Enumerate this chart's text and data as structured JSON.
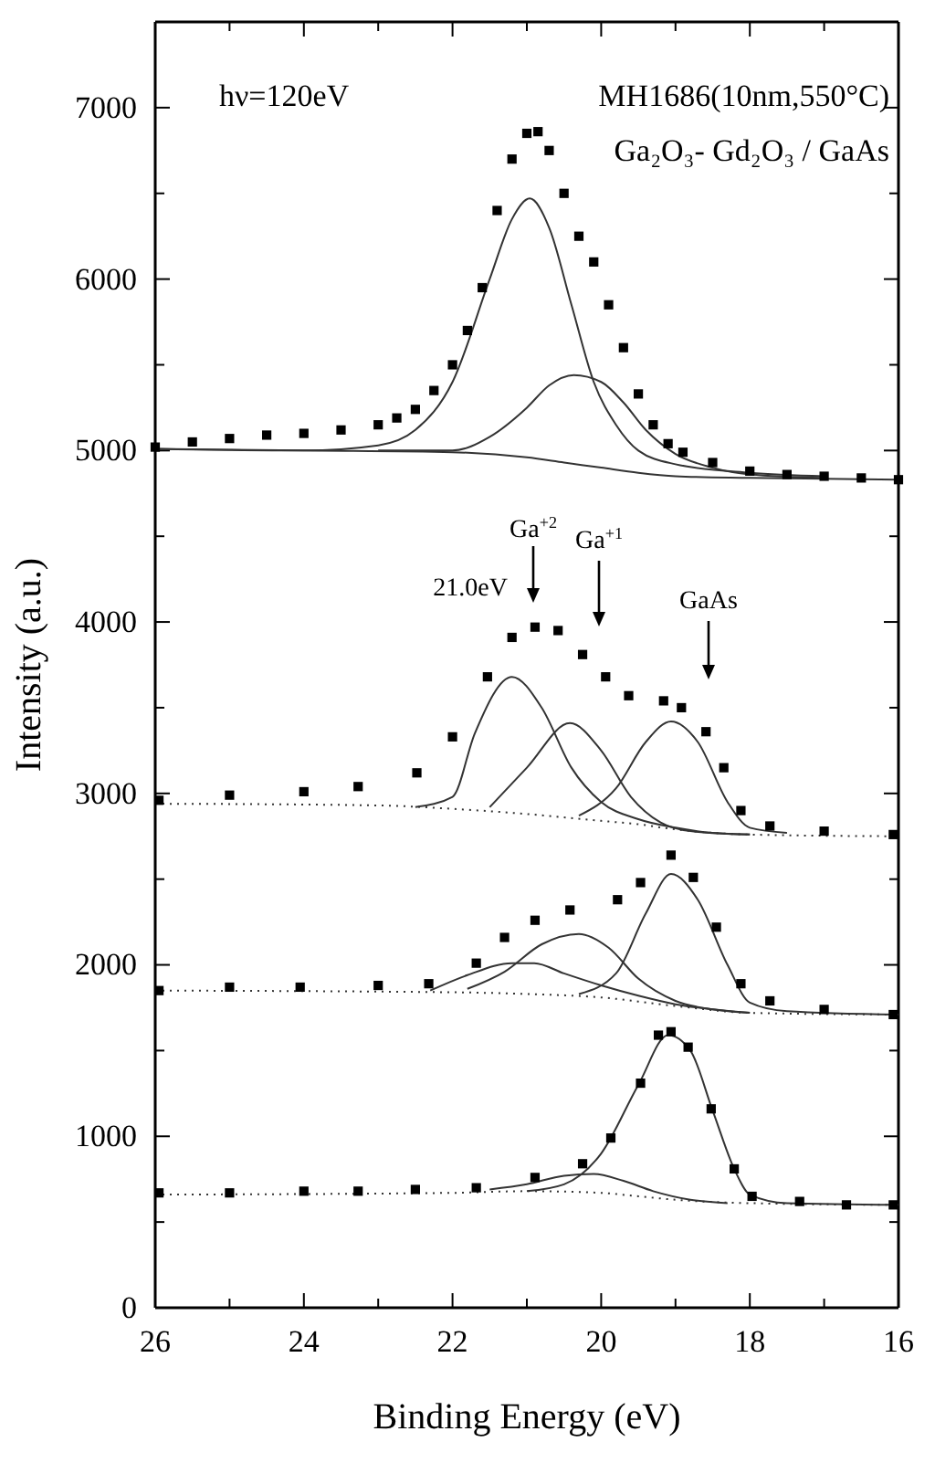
{
  "chart_data": {
    "type": "line",
    "xlabel": "Binding Energy (eV)",
    "ylabel": "Intensity (a.u.)",
    "xlim": [
      26,
      16
    ],
    "ylim": [
      0,
      7500
    ],
    "xticks": [
      26,
      {
        "value": 25,
        "label": null
      },
      24,
      {
        "value": 23,
        "label": null
      },
      22,
      {
        "value": 21,
        "label": null
      },
      20,
      {
        "value": 19,
        "label": null
      },
      18,
      {
        "value": 17,
        "label": null
      },
      16
    ],
    "yticks": [
      0,
      {
        "value": 500,
        "label": null
      },
      1000,
      {
        "value": 1500,
        "label": null
      },
      2000,
      {
        "value": 2500,
        "label": null
      },
      3000,
      {
        "value": 3500,
        "label": null
      },
      4000,
      {
        "value": 4500,
        "label": null
      },
      5000,
      {
        "value": 5500,
        "label": null
      },
      6000,
      {
        "value": 6500,
        "label": null
      },
      7000
    ],
    "grid": false,
    "annotations": [
      "hν=120eV",
      "MH1686(10nm,550°C)",
      "Ga₂O₃- Gd₂O₃ / GaAs",
      "21.0eV",
      "Ga$^{+2}$",
      "Ga$^{+1}$",
      "GaAs"
    ],
    "series": [
      {
        "type": "scatter",
        "marker": "square",
        "color": "#000000",
        "x": [
          26,
          25.5,
          25,
          24.5,
          24,
          23.5,
          23,
          22.75,
          22.5,
          22.25,
          22,
          21.8,
          21.6,
          21.4,
          21.2,
          21,
          20.85,
          20.7,
          20.5,
          20.3,
          20.1,
          19.9,
          19.7,
          19.5,
          19.3,
          19.1,
          18.9,
          18.5,
          18,
          17.5,
          17,
          16.5,
          16
        ],
        "values": [
          5020,
          5050,
          5070,
          5090,
          5100,
          5120,
          5150,
          5190,
          5240,
          5350,
          5500,
          5700,
          5950,
          6400,
          6700,
          6850,
          6860,
          6750,
          6500,
          6250,
          6100,
          5850,
          5600,
          5330,
          5150,
          5040,
          4990,
          4930,
          4880,
          4860,
          4850,
          4840,
          4830
        ]
      },
      {
        "color": "#333333",
        "x": [
          26,
          24,
          23,
          22.5,
          22,
          21.5,
          21.2,
          20.96,
          20.7,
          20.4,
          20.1,
          19.8,
          19.5,
          19,
          18,
          17
        ],
        "values": [
          5010,
          5000,
          5030,
          5120,
          5400,
          6000,
          6350,
          6470,
          6300,
          5850,
          5400,
          5150,
          5000,
          4920,
          4870,
          4850
        ]
      },
      {
        "color": "#333333",
        "x": [
          23,
          22,
          21.5,
          21,
          20.7,
          20.37,
          20,
          19.7,
          19.4,
          19,
          18.5,
          18,
          17
        ],
        "values": [
          5000,
          5000,
          5080,
          5250,
          5380,
          5440,
          5400,
          5280,
          5120,
          4980,
          4900,
          4860,
          4840
        ]
      },
      {
        "color": "#333333",
        "x": [
          26,
          24,
          22,
          21,
          20.5,
          20,
          19.5,
          19,
          18,
          16
        ],
        "values": [
          5010,
          5000,
          4990,
          4960,
          4930,
          4900,
          4870,
          4850,
          4840,
          4830
        ]
      },
      {
        "type": "scatter",
        "marker": "square",
        "color": "#000000",
        "x": [
          25.95,
          25,
          24,
          23.27,
          22.48,
          22,
          21.53,
          21.2,
          20.89,
          20.58,
          20.25,
          19.94,
          19.63,
          19.16,
          18.92,
          18.59,
          18.35,
          18.12,
          17.73,
          17,
          16.07
        ],
        "values": [
          2960,
          2990,
          3010,
          3040,
          3120,
          3330,
          3680,
          3910,
          3970,
          3950,
          3810,
          3680,
          3570,
          3540,
          3500,
          3360,
          3150,
          2900,
          2810,
          2780,
          2760
        ]
      },
      {
        "color": "#333333",
        "x": [
          22.5,
          22,
          21.7,
          21.2,
          20.8,
          20.4,
          20,
          19.5,
          19,
          18.5,
          18
        ],
        "values": [
          2920,
          2980,
          3350,
          3680,
          3500,
          3150,
          2950,
          2850,
          2800,
          2770,
          2760
        ]
      },
      {
        "color": "#333333",
        "x": [
          21.5,
          21,
          20.42,
          20,
          19.6,
          19.2,
          18.8,
          18
        ],
        "values": [
          2920,
          3150,
          3410,
          3250,
          2980,
          2830,
          2780,
          2760
        ]
      },
      {
        "color": "#333333",
        "x": [
          20.3,
          19.8,
          19.4,
          19.06,
          18.7,
          18.3,
          18,
          17.5
        ],
        "values": [
          2870,
          3030,
          3300,
          3420,
          3300,
          2950,
          2800,
          2770
        ]
      },
      {
        "color": "#333333",
        "line_style": "dotted",
        "x": [
          26,
          23,
          22,
          21,
          20,
          19.5,
          19,
          18,
          16
        ],
        "values": [
          2940,
          2930,
          2910,
          2880,
          2840,
          2820,
          2790,
          2760,
          2750
        ]
      },
      {
        "type": "scatter",
        "marker": "square",
        "color": "#000000",
        "x": [
          25.95,
          25,
          24.05,
          23,
          22.32,
          21.68,
          21.3,
          20.89,
          20.42,
          19.78,
          19.47,
          19.06,
          18.76,
          18.45,
          18.12,
          17.73,
          17,
          16.07
        ],
        "values": [
          1850,
          1870,
          1870,
          1880,
          1890,
          2010,
          2160,
          2260,
          2320,
          2380,
          2480,
          2640,
          2510,
          2220,
          1890,
          1790,
          1740,
          1710
        ]
      },
      {
        "color": "#333333",
        "x": [
          22.3,
          21.8,
          21.2,
          20.9,
          20.5,
          20,
          19.5,
          19,
          18.5,
          18
        ],
        "values": [
          1850,
          1940,
          2010,
          2010,
          1950,
          1880,
          1820,
          1770,
          1740,
          1720
        ]
      },
      {
        "color": "#333333",
        "x": [
          21.8,
          21.3,
          20.8,
          20.3,
          19.9,
          19.5,
          19,
          18.5,
          18
        ],
        "values": [
          1860,
          1960,
          2120,
          2180,
          2100,
          1920,
          1790,
          1740,
          1720
        ]
      },
      {
        "color": "#333333",
        "x": [
          20.3,
          19.8,
          19.4,
          19.06,
          18.7,
          18.3,
          18,
          17.5,
          16
        ],
        "values": [
          1830,
          1950,
          2300,
          2530,
          2380,
          2000,
          1780,
          1730,
          1710
        ]
      },
      {
        "color": "#333333",
        "line_style": "dotted",
        "x": [
          26,
          22,
          21,
          20,
          19,
          18,
          16
        ],
        "values": [
          1850,
          1840,
          1830,
          1810,
          1760,
          1720,
          1710
        ]
      },
      {
        "type": "scatter",
        "marker": "square",
        "color": "#000000",
        "x": [
          25.95,
          25,
          24,
          23.27,
          22.5,
          21.68,
          20.89,
          20.25,
          19.87,
          19.47,
          19.23,
          19.06,
          18.83,
          18.52,
          18.21,
          17.97,
          17.33,
          16.7,
          16.07
        ],
        "values": [
          670,
          670,
          680,
          680,
          690,
          700,
          760,
          840,
          990,
          1310,
          1590,
          1610,
          1520,
          1160,
          810,
          650,
          620,
          600,
          600
        ]
      },
      {
        "color": "#333333",
        "x": [
          21,
          20.5,
          20,
          19.5,
          19.1,
          18.8,
          18.5,
          18.2,
          18,
          17.5,
          16
        ],
        "values": [
          680,
          720,
          900,
          1300,
          1590,
          1500,
          1150,
          800,
          660,
          610,
          600
        ]
      },
      {
        "color": "#333333",
        "x": [
          21.5,
          21,
          20.5,
          20.1,
          19.7,
          19.3,
          18.8,
          18.3
        ],
        "values": [
          690,
          720,
          770,
          780,
          740,
          680,
          630,
          610
        ]
      },
      {
        "color": "#333333",
        "line_style": "dotted",
        "x": [
          26,
          22,
          21,
          20,
          19.5,
          19,
          18,
          16
        ],
        "values": [
          660,
          670,
          680,
          670,
          650,
          630,
          610,
          600
        ]
      }
    ]
  }
}
